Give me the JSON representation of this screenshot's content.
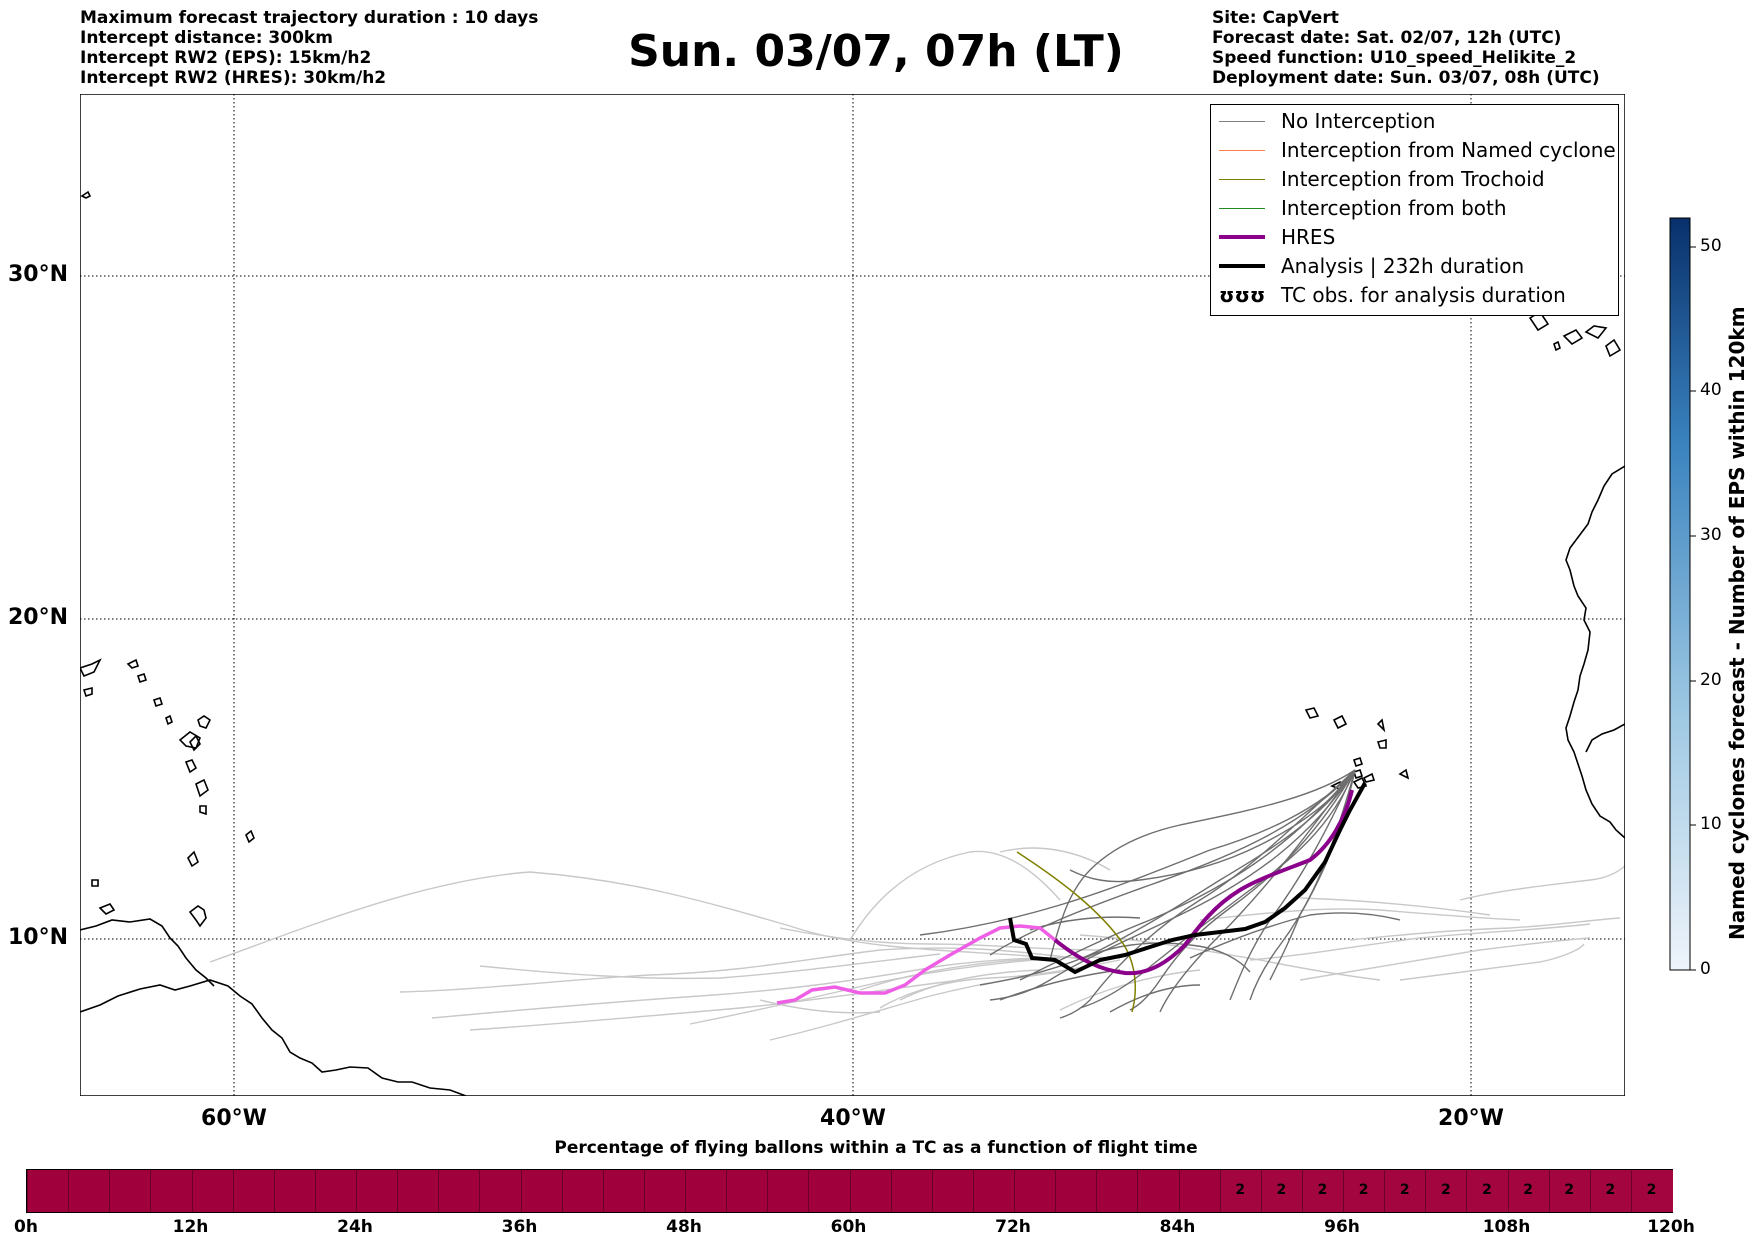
{
  "header_left": [
    "Maximum forecast trajectory duration : 10 days",
    "Intercept distance: 300km",
    "Intercept RW2 (EPS):  15km/h2",
    "Intercept RW2 (HRES): 30km/h2"
  ],
  "header_right": [
    "Site: CapVert",
    "Forecast date: Sat. 02/07, 12h (UTC)",
    "Speed function: U10_speed_Helikite_2",
    "Deployment date: Sun. 03/07, 08h (UTC)"
  ],
  "title": "Sun. 03/07, 07h (LT)",
  "map": {
    "lat_labels": [
      "30°N",
      "20°N",
      "10°N"
    ],
    "lon_labels": [
      "60°W",
      "40°W",
      "20°W"
    ],
    "lon_range": [
      -65,
      -15
    ],
    "lat_range": [
      5.4,
      34.7
    ],
    "gridlines": true
  },
  "legend": {
    "position": "top-right",
    "items": [
      {
        "label": "No Interception",
        "color": "#7f7f7f",
        "style": "thin"
      },
      {
        "label": "Interception from Named cyclone",
        "color": "#ff7f50",
        "style": "thin"
      },
      {
        "label": "Interception from Trochoid",
        "color": "#808000",
        "style": "thin"
      },
      {
        "label": "Interception from both",
        "color": "#228b22",
        "style": "thin"
      },
      {
        "label": "HRES",
        "color": "#8b008b",
        "style": "thick"
      },
      {
        "label": "Analysis | 232h duration",
        "color": "#000000",
        "style": "thick"
      },
      {
        "label": "TC obs. for analysis duration",
        "symbol": "ʊʊʊ"
      }
    ]
  },
  "colorbar": {
    "label": "Named cyclones forecast - Number of EPS within 120km",
    "ticks": [
      "0",
      "10",
      "20",
      "30",
      "40",
      "50"
    ],
    "min": 0,
    "max": 52,
    "colors": [
      "#e8f0fa",
      "#08306b"
    ]
  },
  "percent_bar": {
    "title": "Percentage of flying ballons within a TC as a function of flight time",
    "ticks": [
      "0h",
      "12h",
      "24h",
      "36h",
      "48h",
      "60h",
      "72h",
      "84h",
      "96h",
      "108h",
      "120h"
    ],
    "values": [
      "2",
      "2",
      "2",
      "2",
      "2",
      "2",
      "2",
      "2",
      "2",
      "2",
      "2"
    ],
    "base_color": "#a0003c",
    "value_color": "#a3053f"
  },
  "tracks": {
    "hres_color": "#8b008b",
    "hres_early_color": "#ee5fe6",
    "analysis_color": "#000000",
    "analysis": [
      [
        -23.2,
        14.9
      ],
      [
        -24.5,
        13.3
      ],
      [
        -25.5,
        12.0
      ],
      [
        -27.2,
        10.9
      ],
      [
        -28.8,
        10.1
      ],
      [
        -31.5,
        10.1
      ],
      [
        -33.5,
        9.8
      ],
      [
        -35.3,
        9.2
      ],
      [
        -36.8,
        9.5
      ],
      [
        -37.7,
        9.6
      ],
      [
        -38.0,
        10.0
      ],
      [
        -38.7,
        10.1
      ],
      [
        -38.9,
        10.6
      ]
    ],
    "hres": [
      [
        -23.4,
        14.3
      ],
      [
        -24.3,
        13.1
      ],
      [
        -25.8,
        12.4
      ],
      [
        -28.2,
        11.6
      ],
      [
        -29.6,
        10.6
      ],
      [
        -31.0,
        9.5
      ],
      [
        -32.6,
        9.0
      ],
      [
        -34.3,
        9.6
      ],
      [
        -36.2,
        10.3
      ],
      [
        -37.4,
        10.4
      ]
    ],
    "hres_early": [
      [
        -37.4,
        10.4
      ],
      [
        -38.5,
        10.5
      ],
      [
        -40.0,
        9.7
      ],
      [
        -41.0,
        8.9
      ],
      [
        -42.1,
        8.3
      ],
      [
        -43.4,
        8.4
      ],
      [
        -44.1,
        8.6
      ],
      [
        -44.7,
        8.3
      ],
      [
        -45.5,
        8.1
      ]
    ],
    "trochoid": [
      [
        -38.9,
        12.6
      ],
      [
        -37.2,
        11.9
      ],
      [
        -35.7,
        10.6
      ],
      [
        -34.9,
        9.7
      ],
      [
        -34.6,
        8.7
      ],
      [
        -34.8,
        8.1
      ]
    ]
  }
}
